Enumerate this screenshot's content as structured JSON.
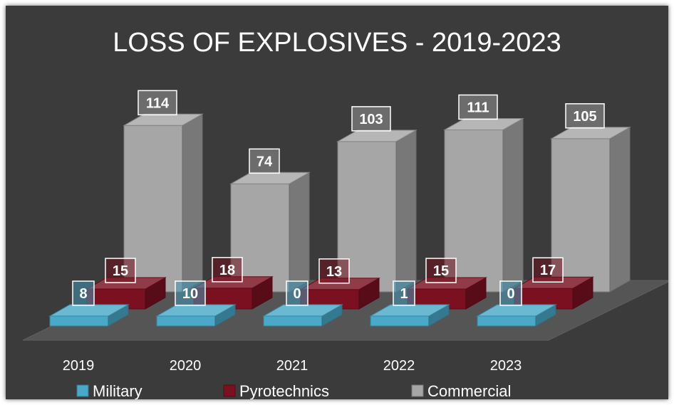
{
  "chart_data": {
    "type": "bar",
    "title": "LOSS OF EXPLOSIVES - 2019-2023",
    "categories": [
      "2019",
      "2020",
      "2021",
      "2022",
      "2023"
    ],
    "series": [
      {
        "name": "Military",
        "values": [
          8,
          10,
          0,
          1,
          0
        ],
        "color": "#4aa8c8"
      },
      {
        "name": "Pyrotechnics",
        "values": [
          15,
          18,
          13,
          15,
          17
        ],
        "color": "#7a1020"
      },
      {
        "name": "Commercial",
        "values": [
          114,
          74,
          103,
          111,
          105
        ],
        "color": "#a6a6a6"
      }
    ],
    "legend_position": "bottom",
    "grid": false,
    "three_d": true
  }
}
